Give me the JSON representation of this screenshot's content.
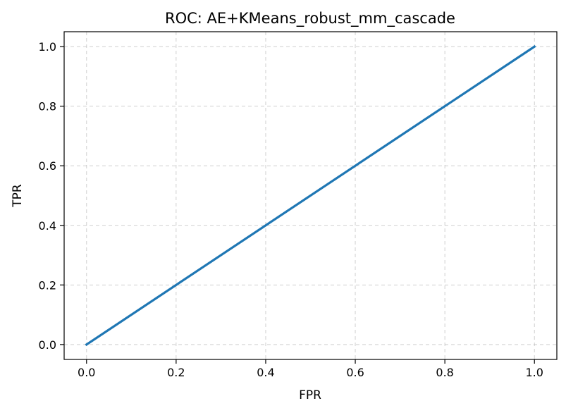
{
  "chart_data": {
    "type": "line",
    "title": "ROC: AE+KMeans_robust_mm_cascade",
    "xlabel": "FPR",
    "ylabel": "TPR",
    "xlim": [
      -0.05,
      1.05
    ],
    "ylim": [
      -0.05,
      1.05
    ],
    "xticks": [
      "0.0",
      "0.2",
      "0.4",
      "0.6",
      "0.8",
      "1.0"
    ],
    "yticks": [
      "0.0",
      "0.2",
      "0.4",
      "0.6",
      "0.8",
      "1.0"
    ],
    "grid": true,
    "series": [
      {
        "color": "#1f77b4",
        "x": [
          0.0,
          1.0
        ],
        "y": [
          0.0,
          1.0
        ]
      }
    ]
  }
}
